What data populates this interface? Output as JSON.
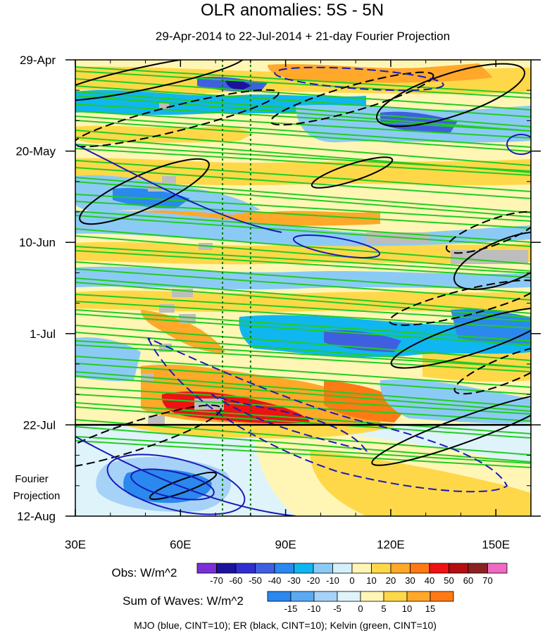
{
  "chart_data": {
    "type": "heatmap",
    "title": "OLR anomalies: 5S - 5N",
    "subtitle": "29-Apr-2014 to 22-Jul-2014 + 21-day Fourier Projection",
    "x_axis": {
      "ticks": [
        30,
        60,
        90,
        120,
        150
      ],
      "tick_labels": [
        "30E",
        "60E",
        "90E",
        "120E",
        "150E"
      ],
      "range": [
        30,
        160
      ]
    },
    "y_axis": {
      "ticks": [
        0,
        21,
        42,
        63,
        84,
        105
      ],
      "tick_labels": [
        "29-Apr",
        "20-May",
        "10-Jun",
        "1-Jul",
        "22-Jul",
        "12-Aug"
      ],
      "range": [
        0,
        105
      ],
      "direction": "time increases downward"
    },
    "projection_label": [
      "Fourier",
      "Projection"
    ],
    "reference_lines": {
      "dotted_longitudes": [
        72,
        80
      ],
      "solid_day": 84
    },
    "obs_colorbar": {
      "label": "Obs: W/m^2",
      "levels": [
        "-70",
        "-60",
        "-50",
        "-40",
        "-30",
        "-20",
        "-10",
        "0",
        "10",
        "20",
        "30",
        "40",
        "50",
        "60",
        "70"
      ],
      "colors": [
        "#7b2fd6",
        "#1c139c",
        "#2f2fd0",
        "#3f5fe0",
        "#2a88ee",
        "#10b6f0",
        "#8ccaf6",
        "#d4f1fb",
        "#fff6b6",
        "#ffd84a",
        "#ffa82a",
        "#ff7a14",
        "#ee1212",
        "#b40e0e",
        "#8b2222",
        "#f06ac4"
      ]
    },
    "waves_colorbar": {
      "label": "Sum of Waves: W/m^2",
      "levels": [
        "-15",
        "-10",
        "-5",
        "0",
        "5",
        "10",
        "15"
      ],
      "colors": [
        "#2a88ee",
        "#5aaaf2",
        "#a6d2f8",
        "#dff3fb",
        "#fff6b6",
        "#ffd84a",
        "#ffa82a",
        "#ff7a14"
      ]
    },
    "contour_note": "MJO (blue, CINT=10); ER (black, CINT=10); Kelvin (green, CINT=10)",
    "series": [
      {
        "name": "MJO",
        "color": "#1a1ab8"
      },
      {
        "name": "ER",
        "color": "#000000"
      },
      {
        "name": "Kelvin",
        "color": "#22cc22"
      }
    ]
  }
}
